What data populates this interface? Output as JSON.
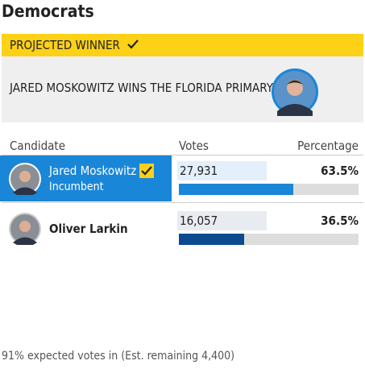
{
  "header": {
    "title": "Democrats"
  },
  "banner": {
    "label": "PROJECTED WINNER",
    "headline": "JARED MOSKOWITZ WINS THE FLORIDA PRIMARY"
  },
  "table": {
    "columns": [
      "Candidate",
      "Votes",
      "Percentage"
    ],
    "rows": [
      {
        "name": "Jared Moskowitz",
        "note": "Incumbent",
        "votes": {
          "value": 27931,
          "label": "27,931"
        },
        "percentage": {
          "value": 63.5,
          "label": "63.5%"
        }
      },
      {
        "name": "Oliver Larkin",
        "votes": {
          "value": 16057,
          "label": "16,057"
        },
        "percentage": {
          "value": 36.5,
          "label": "36.5%"
        }
      }
    ]
  },
  "footer": {
    "text": "91% expected votes in (Est. remaining 4,400)"
  }
}
